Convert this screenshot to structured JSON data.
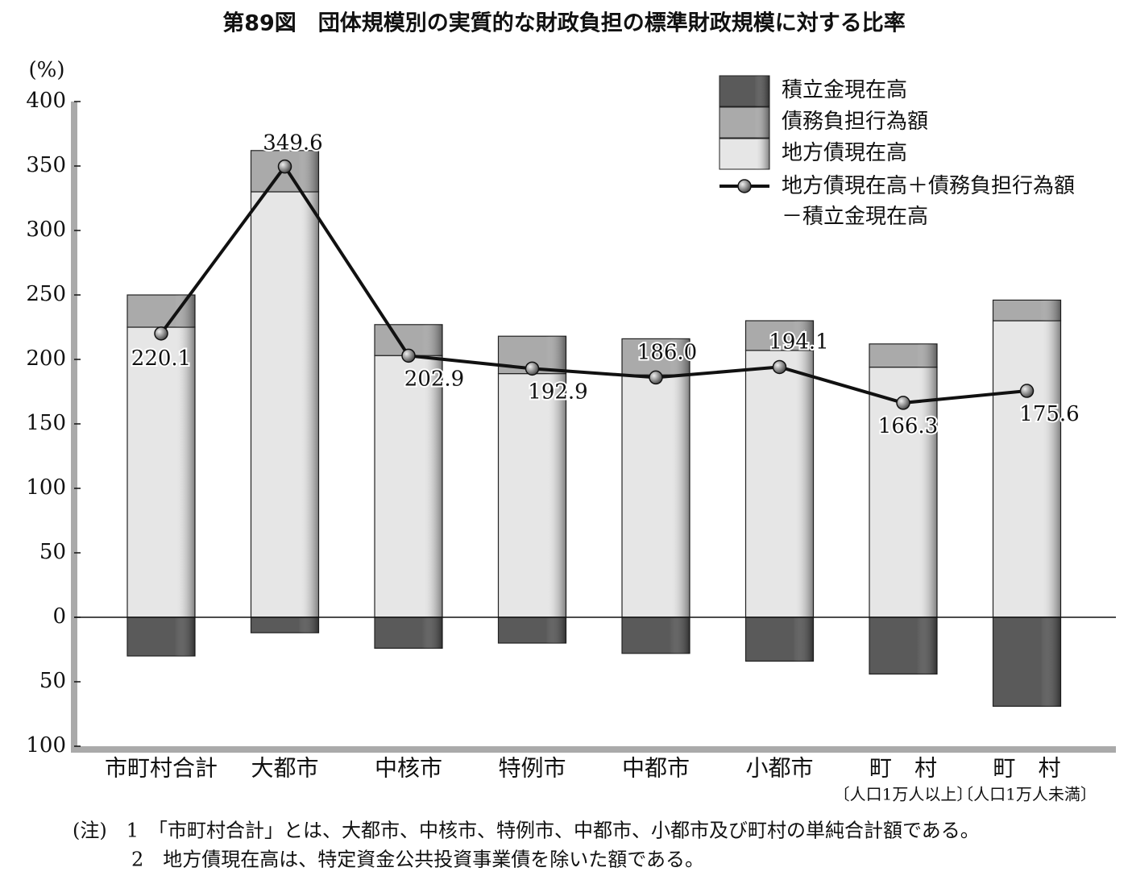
{
  "chart_data": {
    "type": "stacked_bar_line",
    "title": "第89図　団体規模別の実質的な財政負担の標準財政規模に対する比率",
    "y_unit": "(%)",
    "categories": [
      "市町村合計",
      "大都市",
      "中核市",
      "特例市",
      "中都市",
      "小都市",
      "町　村",
      "町　村"
    ],
    "category_notes": [
      null,
      null,
      null,
      null,
      null,
      null,
      "〔人口1万人以上〕",
      "〔人口1万人未満〕"
    ],
    "series": [
      {
        "name": "積立金現在高",
        "kind": "bar",
        "color": "#5a5a5a",
        "values": [
          -30,
          -12,
          -24,
          -20,
          -28,
          -34,
          -44,
          -69
        ]
      },
      {
        "name": "債務負担行為額",
        "kind": "bar",
        "color": "#aaaaaa",
        "values": [
          25,
          32,
          24,
          29,
          28,
          23,
          18,
          16
        ]
      },
      {
        "name": "地方債現在高",
        "kind": "bar",
        "color": "#e6e6e6",
        "values": [
          225,
          330,
          203,
          189,
          188,
          207,
          194,
          230
        ]
      },
      {
        "name": "地方債現在高＋債務負担行為額－積立金現在高",
        "kind": "line",
        "color": "#111111",
        "values": [
          220.1,
          349.6,
          202.9,
          192.9,
          186.0,
          194.1,
          166.3,
          175.6
        ],
        "value_labels": [
          "220.1",
          "349.6",
          "202.9",
          "192.9",
          "186.0",
          "194.1",
          "166.3",
          "175.6"
        ]
      }
    ],
    "ylim": [
      -100,
      400
    ],
    "yticks": [
      400,
      350,
      300,
      250,
      200,
      150,
      100,
      50,
      0,
      {
        "value": -50,
        "label": "50"
      },
      {
        "value": -100,
        "label": "100"
      }
    ],
    "legend": "upper right",
    "notes": [
      "(注)　1　「市町村合計」とは、大都市、中核市、特例市、中都市、小都市及び町村の単純合計額である。",
      "2　地方債現在高は、特定資金公共投資事業債を除いた額である。"
    ]
  }
}
